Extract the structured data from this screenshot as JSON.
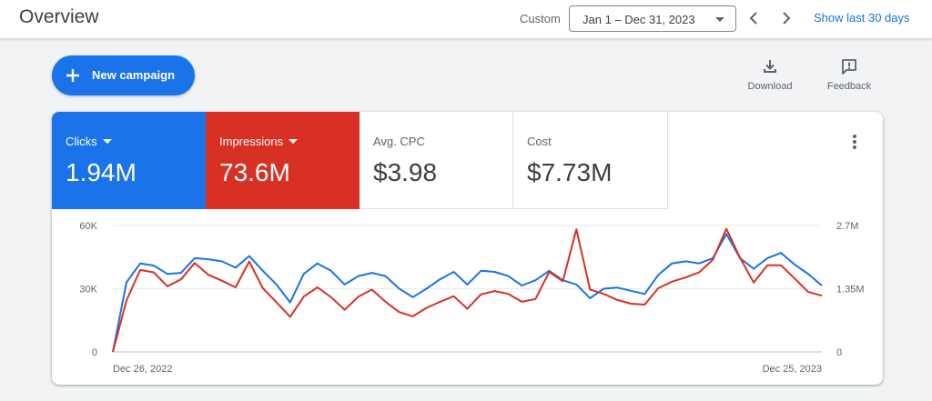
{
  "header": {
    "title": "Overview",
    "range_label": "Custom",
    "date_range": "Jan 1 – Dec 31, 2023",
    "show_last": "Show last 30 days",
    "icons": {
      "prev": "chevron-left-icon",
      "next": "chevron-right-icon",
      "dropdown": "arrow-drop-down-icon"
    }
  },
  "actions": {
    "new_campaign": "New campaign",
    "download": "Download",
    "feedback": "Feedback",
    "icons": {
      "new_campaign": "plus-icon",
      "download": "download-icon",
      "feedback": "feedback-icon",
      "more": "more-vert-icon"
    }
  },
  "metrics": [
    {
      "label": "Clicks",
      "value": "1.94M",
      "selected": true,
      "color": "#1a73e8"
    },
    {
      "label": "Impressions",
      "value": "73.6M",
      "selected": true,
      "color": "#d93025"
    },
    {
      "label": "Avg. CPC",
      "value": "$3.98",
      "selected": false
    },
    {
      "label": "Cost",
      "value": "$7.73M",
      "selected": false
    }
  ],
  "chart_data": {
    "type": "line",
    "x_labels": [
      "Dec 26, 2022",
      "Dec 25, 2023"
    ],
    "y_left": {
      "ticks": [
        "0",
        "30K",
        "60K"
      ],
      "range": [
        0,
        60000
      ]
    },
    "y_right": {
      "ticks": [
        "0",
        "1.35M",
        "2.7M"
      ],
      "range": [
        0,
        2700000
      ]
    },
    "grid": true,
    "series": [
      {
        "name": "Clicks",
        "axis": "left",
        "color": "#1a73e8",
        "values": [
          0,
          33000,
          42000,
          41000,
          37000,
          37500,
          44500,
          44000,
          43000,
          40000,
          45500,
          38500,
          32000,
          23500,
          37000,
          42000,
          38500,
          32000,
          36000,
          37500,
          36000,
          30000,
          26000,
          30000,
          34500,
          38000,
          32000,
          38500,
          38000,
          36000,
          31500,
          34000,
          38500,
          34000,
          32000,
          25500,
          30000,
          30500,
          29000,
          27500,
          36500,
          42000,
          43000,
          42000,
          44500,
          56000,
          44500,
          39500,
          44500,
          47000,
          41500,
          37000,
          31500
        ],
        "color_hex": "#1a73e8"
      },
      {
        "name": "Impressions",
        "axis": "right",
        "color": "#d93025",
        "values": [
          0,
          1100000,
          1750000,
          1700000,
          1400000,
          1550000,
          1900000,
          1650000,
          1520000,
          1380000,
          1930000,
          1360000,
          1060000,
          750000,
          1180000,
          1380000,
          1170000,
          900000,
          1180000,
          1330000,
          1070000,
          850000,
          760000,
          940000,
          1070000,
          1190000,
          920000,
          1230000,
          1300000,
          1240000,
          1070000,
          1130000,
          1710000,
          1510000,
          2620000,
          1330000,
          1240000,
          1110000,
          1030000,
          1010000,
          1360000,
          1500000,
          1590000,
          1700000,
          1970000,
          2630000,
          2010000,
          1480000,
          1850000,
          1850000,
          1570000,
          1280000,
          1200000
        ]
      }
    ]
  }
}
